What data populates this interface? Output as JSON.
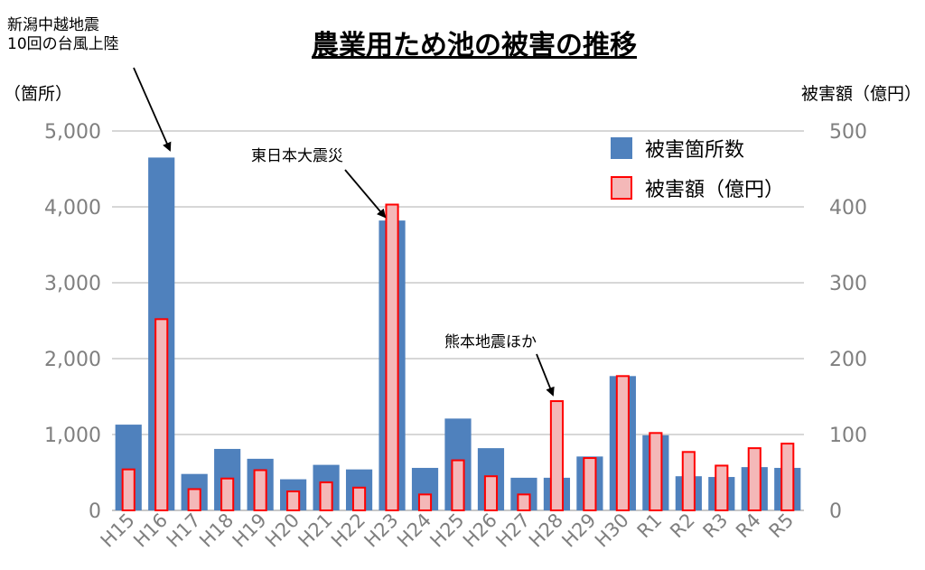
{
  "chart_data": {
    "type": "bar",
    "title": "農業用ため池の被害の推移",
    "left_unit": "（箇所）",
    "right_unit": "被害額（億円）",
    "categories": [
      "H15",
      "H16",
      "H17",
      "H18",
      "H19",
      "H20",
      "H21",
      "H22",
      "H23",
      "H24",
      "H25",
      "H26",
      "H27",
      "H28",
      "H29",
      "H30",
      "R1",
      "R2",
      "R3",
      "R4",
      "R5"
    ],
    "series": [
      {
        "name": "被害箇所数",
        "axis": "left",
        "color": "#4f81bd",
        "values": [
          1130,
          4650,
          480,
          810,
          680,
          410,
          600,
          540,
          3820,
          560,
          1210,
          820,
          430,
          430,
          710,
          1770,
          990,
          450,
          440,
          570,
          560
        ]
      },
      {
        "name": "被害額（億円）",
        "axis": "right",
        "color": "#f4b8b8",
        "stroke": "#ff0000",
        "values": [
          54,
          252,
          28,
          42,
          53,
          25,
          37,
          30,
          403,
          21,
          66,
          45,
          21,
          144,
          69,
          177,
          102,
          77,
          59,
          82,
          88
        ]
      }
    ],
    "ylim_left": [
      0,
      5000
    ],
    "ylim_right": [
      0,
      500
    ],
    "yticks_left": [
      "0",
      "1,000",
      "2,000",
      "3,000",
      "4,000",
      "5,000"
    ],
    "yticks_right": [
      "0",
      "100",
      "200",
      "300",
      "400",
      "500"
    ],
    "grid": true,
    "legend_position": "top-right",
    "annotations": [
      {
        "lines": [
          "新潟中越地震",
          "10回の台風上陸"
        ],
        "category": "H16"
      },
      {
        "lines": [
          "東日本大震災"
        ],
        "category": "H23"
      },
      {
        "lines": [
          "熊本地震ほか"
        ],
        "category": "H28"
      }
    ]
  }
}
